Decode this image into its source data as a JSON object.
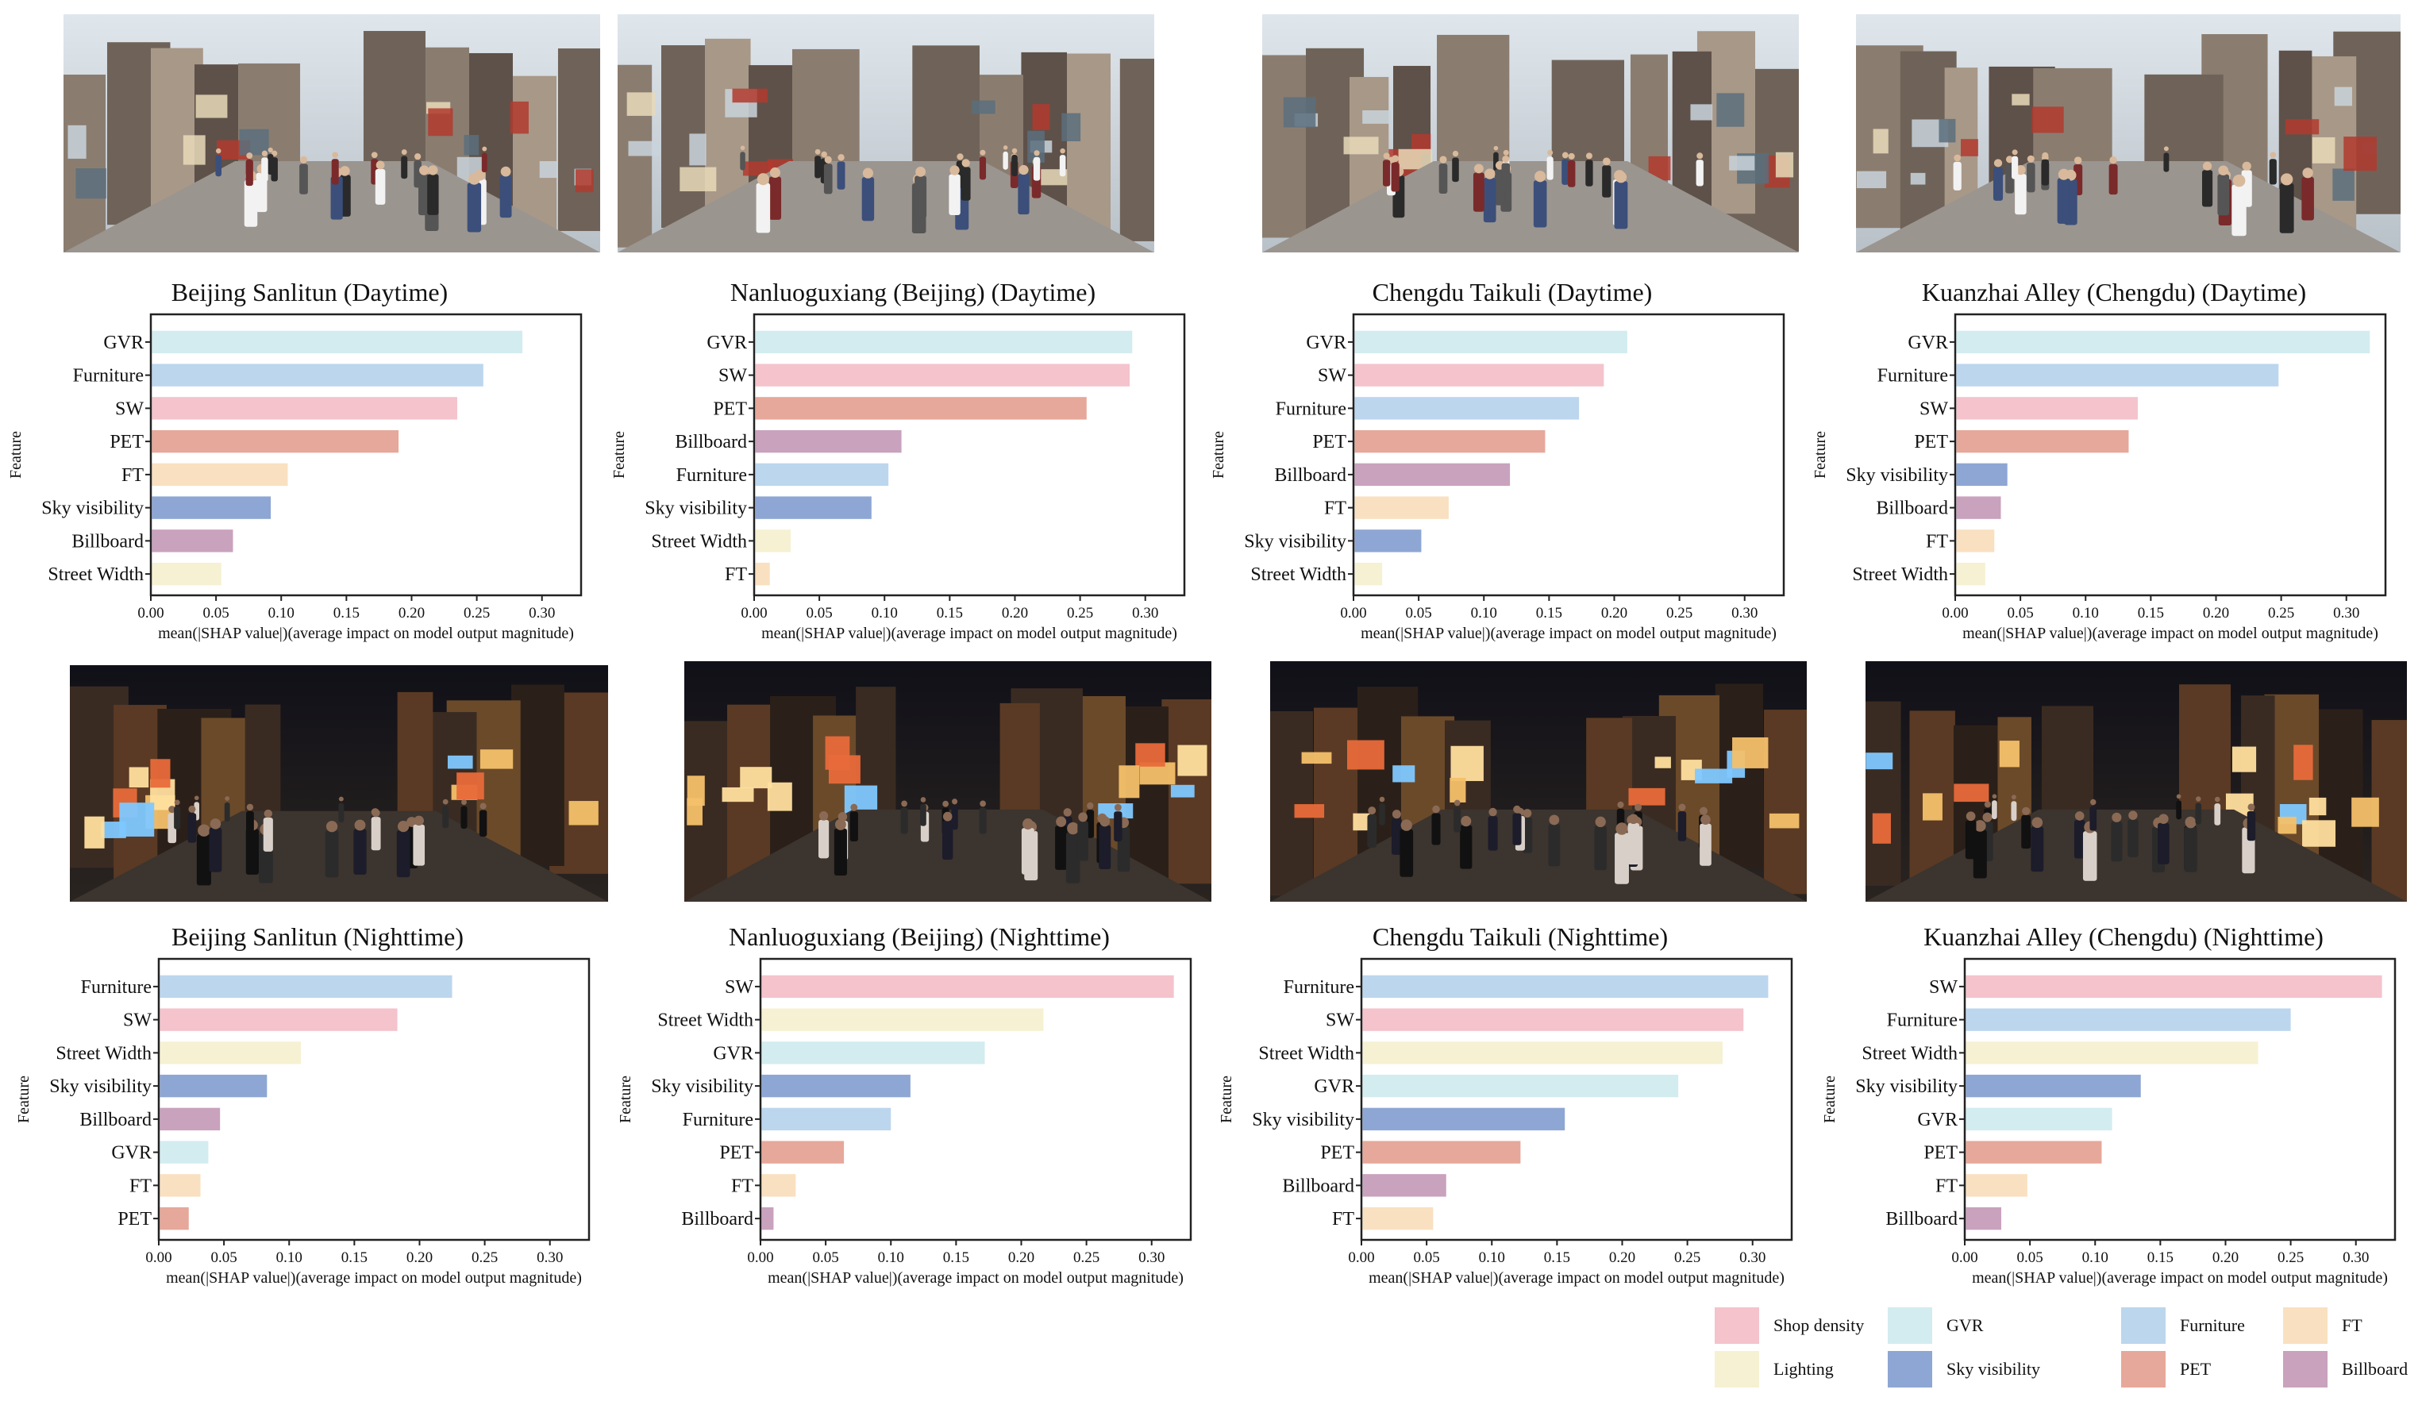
{
  "colors": {
    "GVR": "#d3ecef",
    "Furniture": "#bcd6ee",
    "SW": "#f4c3cc",
    "PET": "#e6a89a",
    "FT": "#f9e0c0",
    "Sky visibility": "#8ea6d3",
    "Billboard": "#c9a2bd",
    "Street Width": "#f5f1d2"
  },
  "axis": {
    "ylabel": "Feature",
    "xlabel": "mean(|SHAP value|)(average impact on model output magnitude)",
    "ticks": [
      0,
      0.05,
      0.1,
      0.15,
      0.2,
      0.25,
      0.3
    ],
    "tick_labels": [
      "0.00",
      "0.05",
      "0.10",
      "0.15",
      "0.20",
      "0.25",
      "0.30"
    ]
  },
  "photos": [
    {
      "name": "beijing-sanlitun-daytime-photo",
      "theme": "day"
    },
    {
      "name": "nanluoguxiang-daytime-photo",
      "theme": "day"
    },
    {
      "name": "chengdu-taikuli-daytime-photo",
      "theme": "day"
    },
    {
      "name": "kuanzhai-alley-daytime-photo",
      "theme": "day"
    },
    {
      "name": "beijing-sanlitun-nighttime-photo",
      "theme": "night"
    },
    {
      "name": "nanluoguxiang-nighttime-photo",
      "theme": "night"
    },
    {
      "name": "chengdu-taikuli-nighttime-photo",
      "theme": "night"
    },
    {
      "name": "kuanzhai-alley-nighttime-photo",
      "theme": "night"
    }
  ],
  "chart_data": [
    {
      "type": "bar",
      "orientation": "horizontal",
      "title": "Beijing Sanlitun (Daytime)",
      "xlabel": "mean(|SHAP value|)(average impact on model output magnitude)",
      "ylabel": "Feature",
      "xlim": [
        0,
        0.33
      ],
      "categories": [
        "GVR",
        "Furniture",
        "SW",
        "PET",
        "FT",
        "Sky visibility",
        "Billboard",
        "Street Width"
      ],
      "values": [
        0.285,
        0.255,
        0.235,
        0.19,
        0.105,
        0.092,
        0.063,
        0.054
      ]
    },
    {
      "type": "bar",
      "orientation": "horizontal",
      "title": "Nanluoguxiang (Beijing) (Daytime)",
      "xlabel": "mean(|SHAP value|)(average impact on model output magnitude)",
      "ylabel": "Feature",
      "xlim": [
        0,
        0.33
      ],
      "categories": [
        "GVR",
        "SW",
        "PET",
        "Billboard",
        "Furniture",
        "Sky visibility",
        "Street Width",
        "FT"
      ],
      "values": [
        0.29,
        0.288,
        0.255,
        0.113,
        0.103,
        0.09,
        0.028,
        0.012
      ]
    },
    {
      "type": "bar",
      "orientation": "horizontal",
      "title": "Chengdu Taikuli (Daytime)",
      "xlabel": "mean(|SHAP value|)(average impact on model output magnitude)",
      "ylabel": "Feature",
      "xlim": [
        0,
        0.33
      ],
      "categories": [
        "GVR",
        "SW",
        "Furniture",
        "PET",
        "Billboard",
        "FT",
        "Sky visibility",
        "Street Width"
      ],
      "values": [
        0.21,
        0.192,
        0.173,
        0.147,
        0.12,
        0.073,
        0.052,
        0.022
      ]
    },
    {
      "type": "bar",
      "orientation": "horizontal",
      "title": "Kuanzhai Alley (Chengdu) (Daytime)",
      "xlabel": "mean(|SHAP value|)(average impact on model output magnitude)",
      "ylabel": "Feature",
      "xlim": [
        0,
        0.33
      ],
      "categories": [
        "GVR",
        "Furniture",
        "SW",
        "PET",
        "Sky visibility",
        "Billboard",
        "FT",
        "Street Width"
      ],
      "values": [
        0.318,
        0.248,
        0.14,
        0.133,
        0.04,
        0.035,
        0.03,
        0.023
      ]
    },
    {
      "type": "bar",
      "orientation": "horizontal",
      "title": "Beijing Sanlitun (Nighttime)",
      "xlabel": "mean(|SHAP value|)(average impact on model output magnitude)",
      "ylabel": "Feature",
      "xlim": [
        0,
        0.33
      ],
      "categories": [
        "Furniture",
        "SW",
        "Street Width",
        "Sky visibility",
        "Billboard",
        "GVR",
        "FT",
        "PET"
      ],
      "values": [
        0.225,
        0.183,
        0.109,
        0.083,
        0.047,
        0.038,
        0.032,
        0.023
      ]
    },
    {
      "type": "bar",
      "orientation": "horizontal",
      "title": "Nanluoguxiang (Beijing) (Nighttime)",
      "xlabel": "mean(|SHAP value|)(average impact on model output magnitude)",
      "ylabel": "Feature",
      "xlim": [
        0,
        0.33
      ],
      "categories": [
        "SW",
        "Street Width",
        "GVR",
        "Sky visibility",
        "Furniture",
        "PET",
        "FT",
        "Billboard"
      ],
      "values": [
        0.317,
        0.217,
        0.172,
        0.115,
        0.1,
        0.064,
        0.027,
        0.01
      ]
    },
    {
      "type": "bar",
      "orientation": "horizontal",
      "title": "Chengdu Taikuli (Nighttime)",
      "xlabel": "mean(|SHAP value|)(average impact on model output magnitude)",
      "ylabel": "Feature",
      "xlim": [
        0,
        0.33
      ],
      "categories": [
        "Furniture",
        "SW",
        "Street Width",
        "GVR",
        "Sky visibility",
        "PET",
        "Billboard",
        "FT"
      ],
      "values": [
        0.312,
        0.293,
        0.277,
        0.243,
        0.156,
        0.122,
        0.065,
        0.055
      ]
    },
    {
      "type": "bar",
      "orientation": "horizontal",
      "title": "Kuanzhai Alley (Chengdu) (Nighttime)",
      "xlabel": "mean(|SHAP value|)(average impact on model output magnitude)",
      "ylabel": "Feature",
      "xlim": [
        0,
        0.33
      ],
      "categories": [
        "SW",
        "Furniture",
        "Street Width",
        "Sky visibility",
        "GVR",
        "PET",
        "FT",
        "Billboard"
      ],
      "values": [
        0.32,
        0.25,
        0.225,
        0.135,
        0.113,
        0.105,
        0.048,
        0.028
      ]
    }
  ],
  "legend": {
    "placement": "bottom-right",
    "items": [
      {
        "label": "Shop density",
        "color": "#f4c3cc"
      },
      {
        "label": "GVR",
        "color": "#d3ecef"
      },
      {
        "label": "Furniture",
        "color": "#bcd6ee"
      },
      {
        "label": "FT",
        "color": "#f9e0c0"
      },
      {
        "label": "Lighting",
        "color": "#f5f1d2"
      },
      {
        "label": "Sky visibility",
        "color": "#8ea6d3"
      },
      {
        "label": "PET",
        "color": "#e6a89a"
      },
      {
        "label": "Billboard",
        "color": "#c9a2bd"
      }
    ]
  }
}
